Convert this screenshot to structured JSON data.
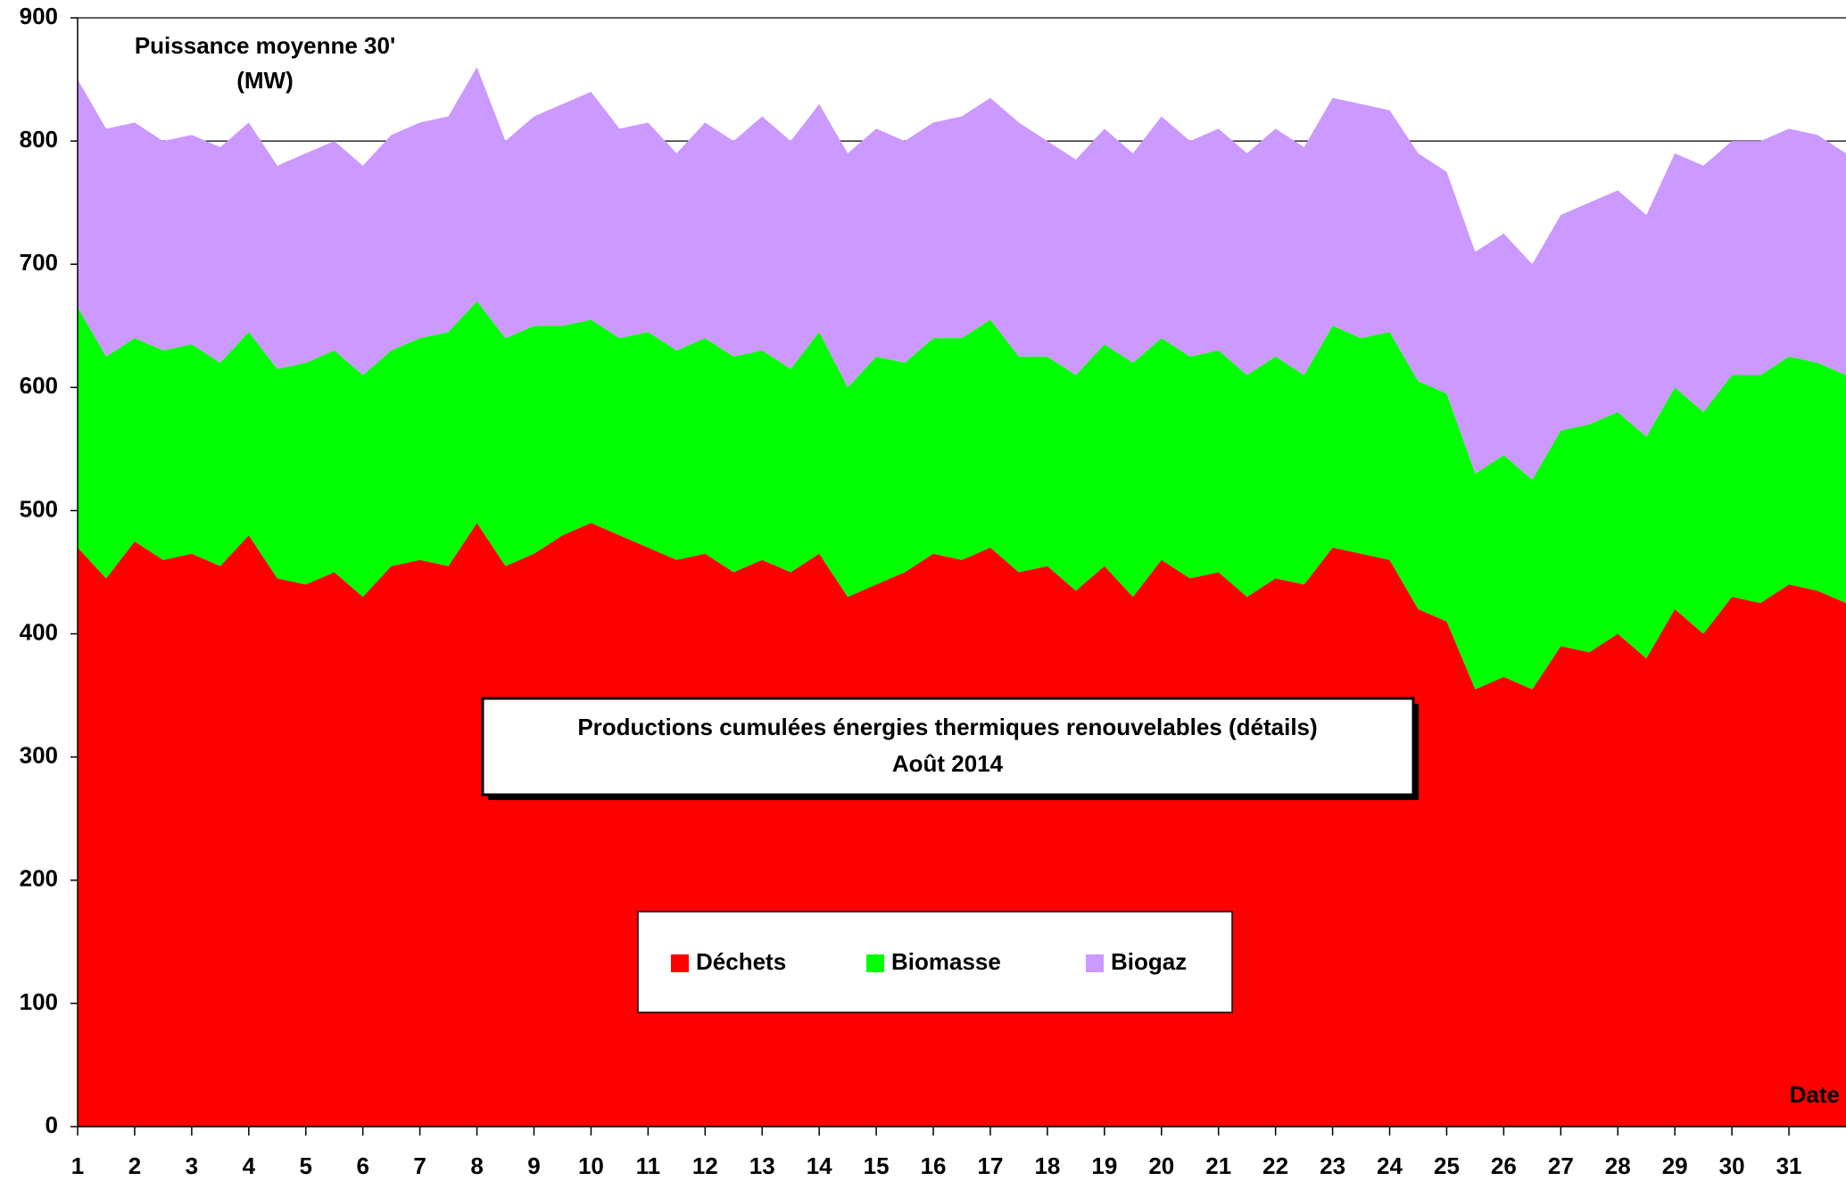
{
  "chart_data": {
    "type": "stacked_area",
    "title": "Productions cumulées énergies thermiques renouvelables (détails)",
    "subtitle": "Août 2014",
    "y_label": [
      "Puissance moyenne 30'",
      "(MW)"
    ],
    "x_label": "Date",
    "x": [
      1,
      1.5,
      2,
      2.5,
      3,
      3.5,
      4,
      4.5,
      5,
      5.5,
      6,
      6.5,
      7,
      7.5,
      8,
      8.5,
      9,
      9.5,
      10,
      10.5,
      11,
      11.5,
      12,
      12.5,
      13,
      13.5,
      14,
      14.5,
      15,
      15.5,
      16,
      16.5,
      17,
      17.5,
      18,
      18.5,
      19,
      19.5,
      20,
      20.5,
      21,
      21.5,
      22,
      22.5,
      23,
      23.5,
      24,
      24.5,
      25,
      25.5,
      26,
      26.5,
      27,
      27.5,
      28,
      28.5,
      29,
      29.5,
      30,
      30.5,
      31,
      31.5,
      32
    ],
    "series": [
      {
        "name": "Déchets",
        "color": "#ff0000",
        "values": [
          470,
          445,
          475,
          460,
          465,
          455,
          480,
          445,
          440,
          450,
          430,
          455,
          460,
          455,
          490,
          455,
          465,
          480,
          490,
          480,
          470,
          460,
          465,
          450,
          460,
          450,
          465,
          430,
          440,
          450,
          465,
          460,
          470,
          450,
          455,
          435,
          455,
          430,
          460,
          445,
          450,
          430,
          445,
          440,
          470,
          465,
          460,
          420,
          410,
          355,
          365,
          355,
          390,
          385,
          400,
          380,
          420,
          400,
          430,
          425,
          440,
          435,
          425
        ]
      },
      {
        "name": "Biomasse",
        "color": "#00ff00",
        "values": [
          195,
          180,
          165,
          170,
          170,
          165,
          165,
          170,
          180,
          180,
          180,
          175,
          180,
          190,
          180,
          185,
          185,
          170,
          165,
          160,
          175,
          170,
          175,
          175,
          170,
          165,
          180,
          170,
          185,
          170,
          175,
          180,
          185,
          175,
          170,
          175,
          180,
          190,
          180,
          180,
          180,
          180,
          180,
          170,
          180,
          175,
          185,
          185,
          185,
          175,
          180,
          170,
          175,
          185,
          180,
          180,
          180,
          180,
          180,
          185,
          185,
          185,
          185
        ]
      },
      {
        "name": "Biogaz",
        "color": "#cc99ff",
        "values": [
          185,
          185,
          175,
          170,
          170,
          175,
          170,
          165,
          170,
          170,
          170,
          175,
          175,
          175,
          190,
          160,
          170,
          180,
          185,
          170,
          170,
          160,
          175,
          175,
          190,
          185,
          185,
          190,
          185,
          180,
          175,
          180,
          180,
          190,
          175,
          175,
          175,
          170,
          180,
          175,
          180,
          180,
          185,
          185,
          185,
          190,
          180,
          185,
          180,
          180,
          180,
          175,
          175,
          180,
          180,
          180,
          190,
          200,
          190,
          190,
          185,
          185,
          180
        ]
      }
    ],
    "xlim": [
      1,
      32
    ],
    "xticks": [
      1,
      2,
      3,
      4,
      5,
      6,
      7,
      8,
      9,
      10,
      11,
      12,
      13,
      14,
      15,
      16,
      17,
      18,
      19,
      20,
      21,
      22,
      23,
      24,
      25,
      26,
      27,
      28,
      29,
      30,
      31
    ],
    "ylim": [
      0,
      900
    ],
    "yticks": [
      0,
      100,
      200,
      300,
      400,
      500,
      600,
      700,
      800,
      900
    ],
    "grid": true
  }
}
